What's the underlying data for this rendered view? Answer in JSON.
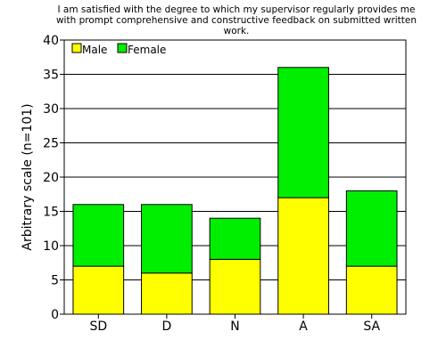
{
  "chart_data": {
    "type": "bar",
    "stacked": true,
    "title_lines": [
      "I am satisfied with the degree to which my supervisor regularly provides me",
      "with prompt comprehensive and constructive feedback on submitted written",
      "work."
    ],
    "xlabel": "",
    "ylabel": "Arbitrary scale (n=101)",
    "categories": [
      "SD",
      "D",
      "N",
      "A",
      "SA"
    ],
    "series": [
      {
        "name": "Male",
        "color": "#ffff00",
        "values": [
          7,
          6,
          8,
          17,
          7
        ]
      },
      {
        "name": "Female",
        "color": "#00ee00",
        "values": [
          9,
          10,
          6,
          19,
          11
        ]
      }
    ],
    "ylim": [
      0,
      40
    ],
    "yticks": [
      0,
      5,
      10,
      15,
      20,
      25,
      30,
      35,
      40
    ],
    "grid": true,
    "legend_position": "top-left"
  }
}
